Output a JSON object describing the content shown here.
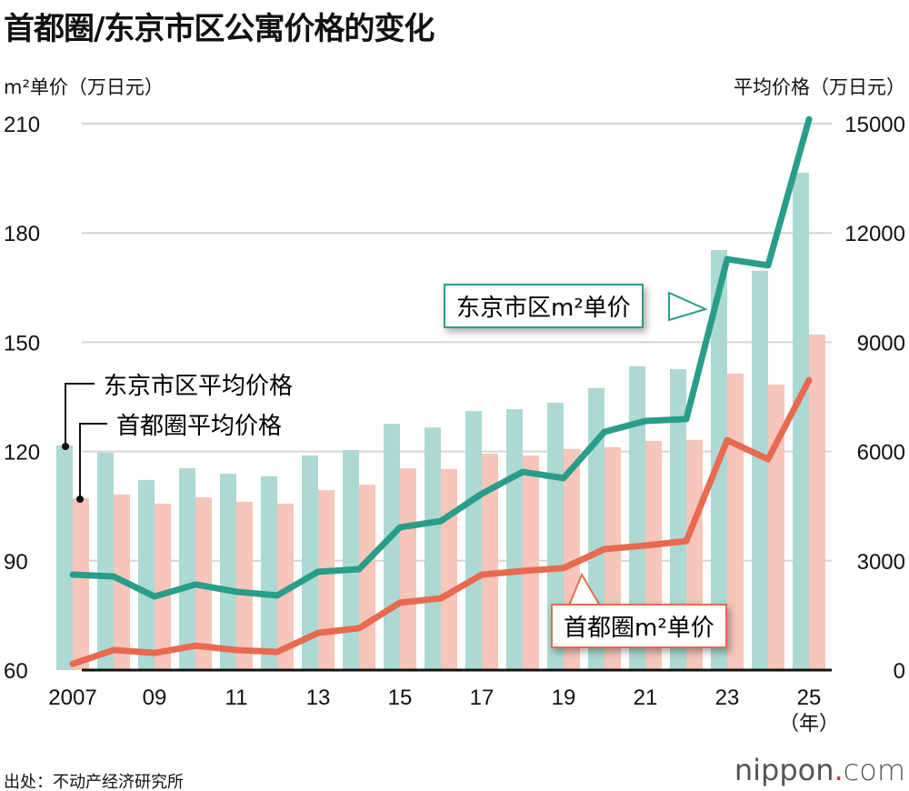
{
  "title": "首都圈/东京市区公寓价格的变化",
  "source": "出处：不动产经济研究所",
  "logo": {
    "main": "nippon",
    "dot": ".",
    "tail": "com"
  },
  "chart_data": {
    "type": "bar+line",
    "title": "首都圈/东京市区公寓价格的变化",
    "ylabel_left": "m²单价（万日元）",
    "ylabel_right": "平均价格（万日元）",
    "xlabel_unit": "（年）",
    "ylim_left": [
      60,
      210
    ],
    "ylim_right": [
      0,
      15000
    ],
    "yticks_left": [
      "60",
      "90",
      "120",
      "150",
      "180",
      "210"
    ],
    "yticks_right": [
      "0",
      "3000",
      "6000",
      "9000",
      "12000",
      "15000"
    ],
    "years": [
      2007,
      2008,
      2009,
      2010,
      2011,
      2012,
      2013,
      2014,
      2015,
      2016,
      2017,
      2018,
      2019,
      2020,
      2021,
      2022,
      2023,
      2024,
      2025
    ],
    "xtick_labels": [
      "2007",
      "",
      "09",
      "",
      "11",
      "",
      "13",
      "",
      "15",
      "",
      "17",
      "",
      "19",
      "",
      "21",
      "",
      "23",
      "",
      "25"
    ],
    "grid": true,
    "series": [
      {
        "name": "东京市区平均价格",
        "type": "bar",
        "axis": "right",
        "color": "#acd9d3",
        "values": [
          6170,
          5970,
          5220,
          5540,
          5390,
          5320,
          5890,
          6040,
          6760,
          6660,
          7110,
          7160,
          7340,
          7740,
          8340,
          8260,
          11530,
          10960,
          13650
        ]
      },
      {
        "name": "首都圈平均价格",
        "type": "bar",
        "axis": "right",
        "color": "#f5c6b9",
        "values": [
          4720,
          4820,
          4570,
          4740,
          4620,
          4570,
          4940,
          5090,
          5540,
          5520,
          5940,
          5890,
          6070,
          6120,
          6290,
          6320,
          8140,
          7840,
          9210
        ]
      },
      {
        "name": "东京市区m²单价",
        "type": "line",
        "axis": "left",
        "color": "#2a9d8a",
        "values": [
          86.2,
          85.7,
          80.2,
          83.5,
          81.5,
          80.5,
          87.0,
          87.7,
          99.2,
          100.9,
          108.4,
          114.4,
          112.7,
          125.4,
          128.4,
          128.9,
          172.8,
          171.1,
          211.2
        ]
      },
      {
        "name": "首都圈m²单价",
        "type": "line",
        "axis": "left",
        "color": "#e86a4f",
        "values": [
          61.7,
          65.5,
          64.7,
          66.7,
          65.5,
          65.0,
          70.2,
          71.5,
          78.5,
          79.7,
          86.2,
          87.2,
          88.0,
          93.2,
          94.2,
          95.4,
          123.1,
          117.9,
          139.6
        ]
      }
    ],
    "annotations": {
      "tokyo_line": "东京市区m²单价",
      "capital_line": "首都圈m²单价",
      "tokyo_bar": "东京市区平均价格",
      "capital_bar": "首都圈平均价格"
    }
  }
}
